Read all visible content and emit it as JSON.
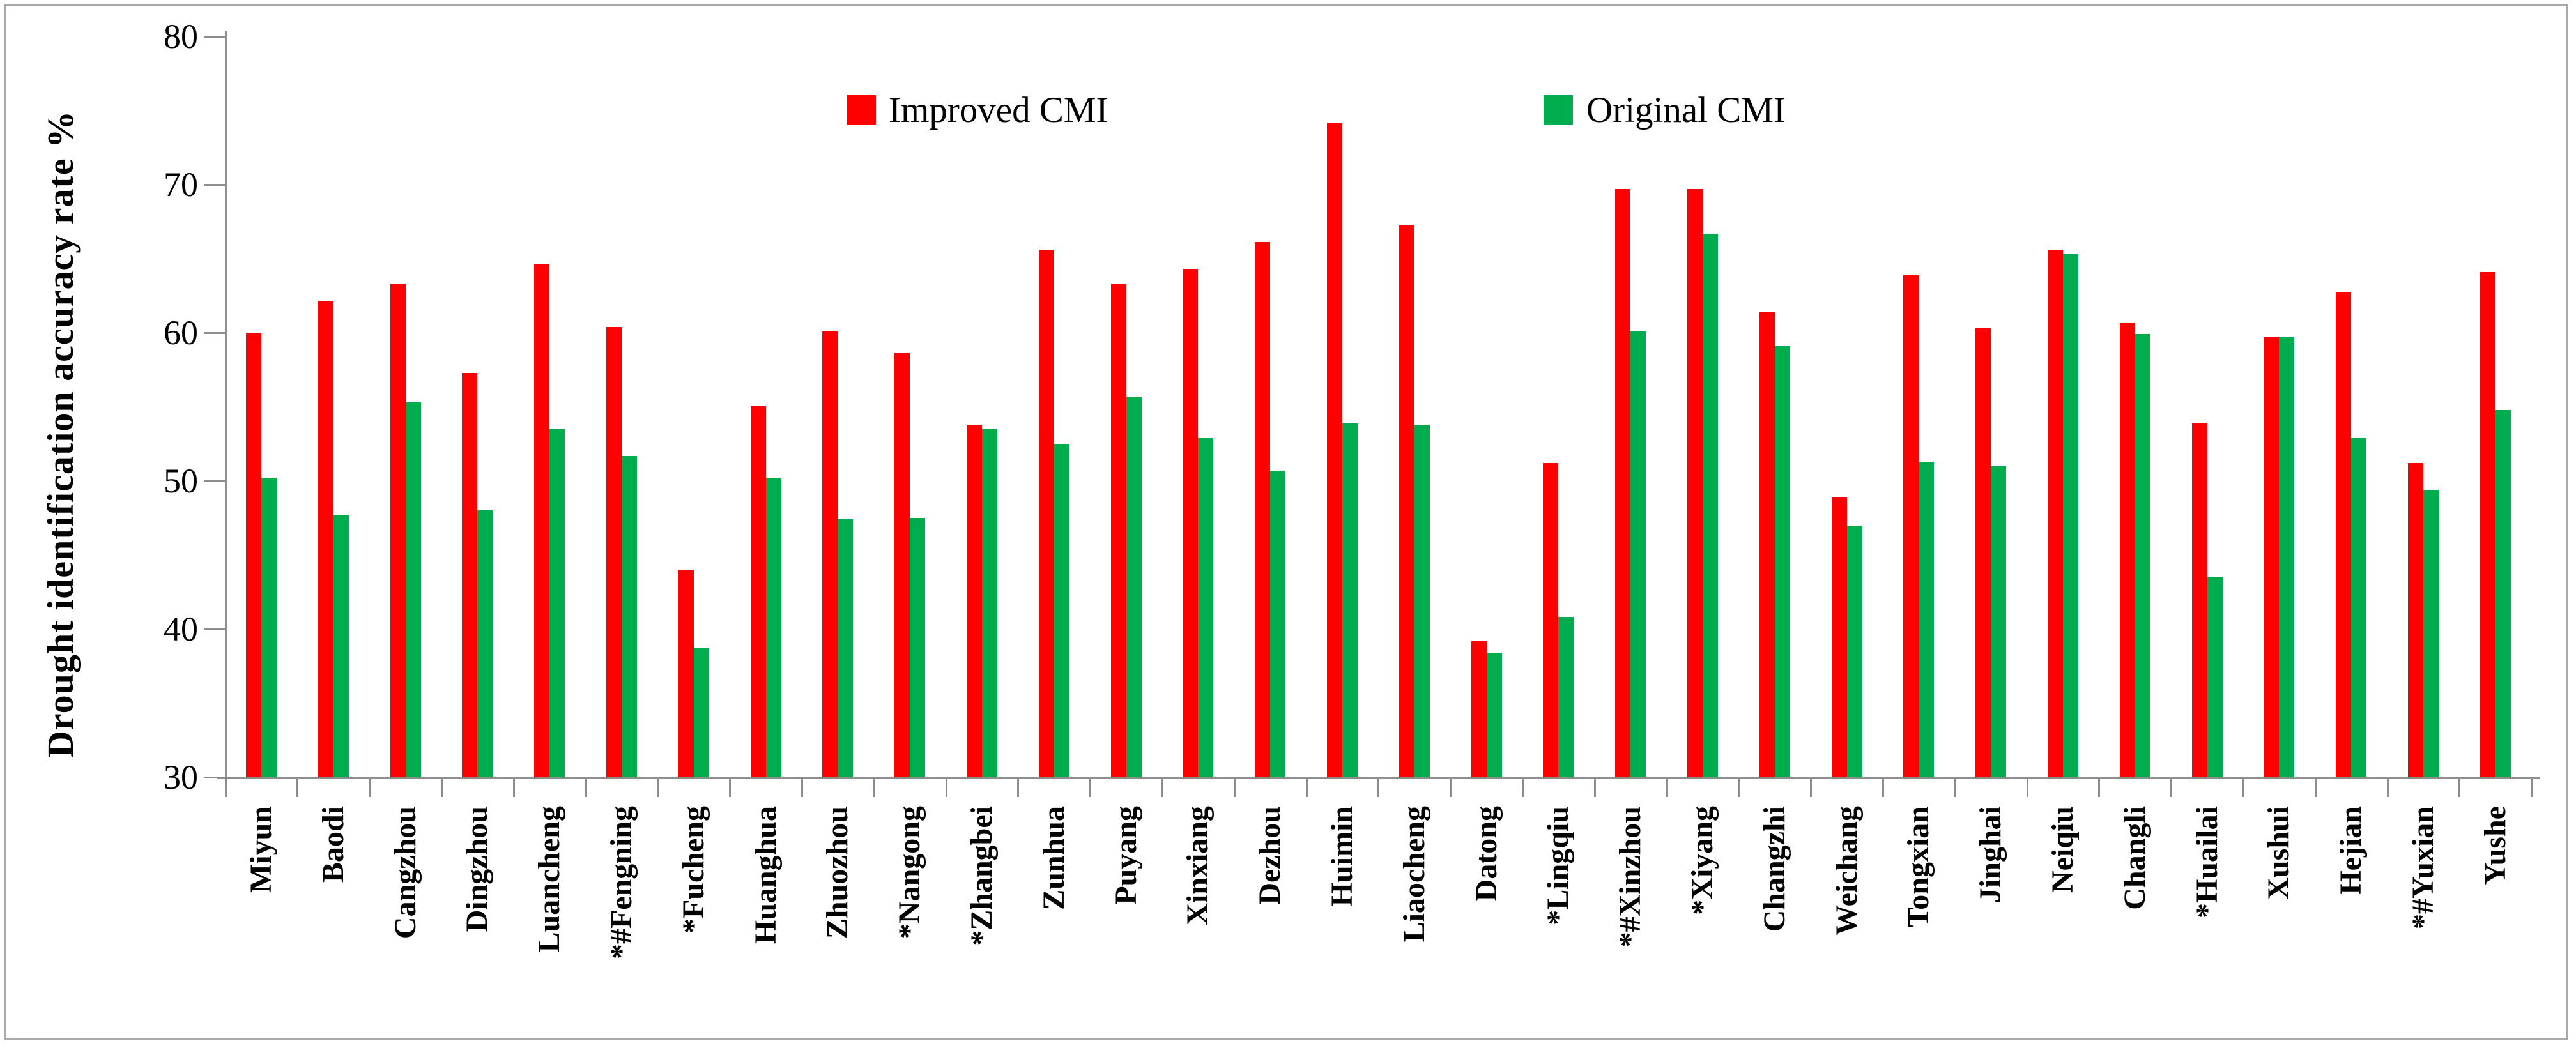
{
  "figure": {
    "background": "#ffffff",
    "border_color": "#a9a9a9"
  },
  "colors": {
    "axis": "#8c8c8c",
    "improved": "#fe0000",
    "original": "#00ac4e",
    "text": "#000000"
  },
  "legend": {
    "improved_label": "Improved CMI",
    "original_label": "Original CMI"
  },
  "chart_data": {
    "type": "bar",
    "title": "",
    "xlabel": "",
    "ylabel": "Drought identification accuracy  rate %",
    "ylim": [
      30,
      80
    ],
    "yticks": [
      30,
      40,
      50,
      60,
      70,
      80
    ],
    "ytick_labels": [
      "30",
      "40",
      "50",
      "60",
      "70",
      "80"
    ],
    "grid": false,
    "legend_position": "top-center",
    "categories": [
      "Miyun",
      "Baodi",
      "Cangzhou",
      "Dingzhou",
      "Luancheng",
      "*#Fengning",
      "*Fucheng",
      "Huanghua",
      "Zhuozhou",
      "*Nangong",
      "*Zhangbei",
      "Zunhua",
      "Puyang",
      "Xinxiang",
      "Dezhou",
      "Huimin",
      "Liaocheng",
      "Datong",
      "*Lingqiu",
      "*#Xinzhou",
      "*Xiyang",
      "Changzhi",
      "Weichang",
      "Tongxian",
      "Jinghai",
      "Neiqiu",
      "Changli",
      "*Huailai",
      "Xushui",
      "Hejian",
      "*#Yuxian",
      "Yushe"
    ],
    "series": [
      {
        "name": "Improved CMI",
        "color": "#fe0000",
        "values": [
          60.0,
          62.1,
          63.3,
          57.3,
          64.6,
          60.4,
          44.0,
          55.1,
          60.1,
          58.6,
          53.8,
          65.6,
          63.3,
          64.3,
          66.1,
          74.2,
          67.3,
          39.2,
          51.2,
          69.7,
          69.7,
          61.4,
          48.9,
          63.9,
          60.3,
          65.6,
          60.7,
          53.9,
          59.7,
          62.7,
          51.2,
          64.1
        ]
      },
      {
        "name": "Original CMI",
        "color": "#00ac4e",
        "values": [
          50.2,
          47.7,
          55.3,
          48.0,
          53.5,
          51.7,
          38.7,
          50.2,
          47.4,
          47.5,
          53.5,
          52.5,
          55.7,
          52.9,
          50.7,
          53.9,
          53.8,
          38.4,
          40.8,
          60.1,
          66.7,
          59.1,
          47.0,
          51.3,
          51.0,
          65.3,
          59.9,
          43.5,
          59.7,
          52.9,
          49.4,
          54.8
        ]
      }
    ]
  }
}
